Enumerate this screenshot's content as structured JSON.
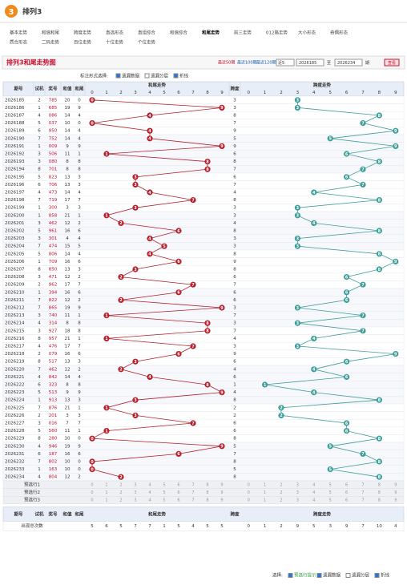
{
  "header": {
    "logo": "3",
    "title": "排列3"
  },
  "nav": [
    "基本走势",
    "和值和尾",
    "跨度走势",
    "直选形态",
    "直组综合",
    "和值综合",
    "和尾走势",
    "前三走势",
    "012路走势",
    "大小形态",
    "奇偶形态",
    "质合形态",
    "二码走势",
    "百位走势",
    "十位走势",
    "个位走势"
  ],
  "page_title": "排列3和尾走势图",
  "period_links": [
    "最近50期",
    "最近100期",
    "最近120期"
  ],
  "query": {
    "select": "近5",
    "from": "2026185",
    "sep": "至",
    "to": "2026234",
    "unit": "期",
    "button": "查看"
  },
  "options": {
    "label": "标注形式选择:",
    "items": [
      "遗漏数据",
      "遗漏分层",
      "折线"
    ],
    "checked": [
      true,
      false,
      true
    ]
  },
  "table": {
    "headers": [
      "期号",
      "试机",
      "奖号",
      "和值",
      "和尾",
      "和尾走势",
      "跨度",
      "跨度走势"
    ],
    "digits": [
      0,
      1,
      2,
      3,
      4,
      5,
      6,
      7,
      8,
      9
    ],
    "periods": [
      "2026185",
      "2026186",
      "2026187",
      "2026188",
      "2026189",
      "2026190",
      "2026191",
      "2026192",
      "2026193",
      "2026194",
      "2026195",
      "2026196",
      "2026197",
      "2026198",
      "2026199",
      "2026200",
      "2026201",
      "2026202",
      "2026203",
      "2026204",
      "2026205",
      "2026206",
      "2026207",
      "2026208",
      "2026209",
      "2026210",
      "2026211",
      "2026212",
      "2026213",
      "2026214",
      "2026215",
      "2026216",
      "2026217",
      "2026218",
      "2026219",
      "2026220",
      "2026221",
      "2026222",
      "2026223",
      "2026224",
      "2026225",
      "2026226",
      "2026227",
      "2026228",
      "2026229",
      "2026230",
      "2026231",
      "2026232",
      "2026233",
      "2026234"
    ],
    "test": [
      2,
      1,
      4,
      5,
      6,
      7,
      1,
      3,
      3,
      8,
      5,
      6,
      4,
      7,
      1,
      1,
      3,
      5,
      3,
      7,
      5,
      1,
      8,
      3,
      2,
      1,
      7,
      7,
      3,
      4,
      3,
      8,
      4,
      2,
      8,
      7,
      4,
      6,
      5,
      1,
      7,
      2,
      3,
      5,
      8,
      4,
      6,
      7,
      1,
      4
    ],
    "prize": [
      "785",
      "685",
      "086",
      "037",
      "950",
      "752",
      "009",
      "506",
      "080",
      "701",
      "823",
      "706",
      "473",
      "719",
      "300",
      "858",
      "462",
      "961",
      "301",
      "474",
      "806",
      "709",
      "850",
      "471",
      "962",
      "394",
      "822",
      "865",
      "740",
      "314",
      "927",
      "957",
      "476",
      "079",
      "517",
      "462",
      "842",
      "323",
      "513",
      "913",
      "876",
      "201",
      "016",
      "560",
      "280",
      "946",
      "187",
      "802",
      "163",
      "804"
    ],
    "sum": [
      20,
      19,
      14,
      10,
      14,
      14,
      9,
      11,
      8,
      8,
      13,
      13,
      14,
      17,
      3,
      21,
      12,
      16,
      4,
      15,
      14,
      16,
      13,
      12,
      17,
      16,
      12,
      19,
      11,
      8,
      18,
      21,
      17,
      16,
      13,
      12,
      14,
      8,
      9,
      13,
      21,
      3,
      7,
      11,
      10,
      19,
      16,
      10,
      10,
      12
    ],
    "tail": [
      0,
      9,
      4,
      0,
      4,
      4,
      9,
      1,
      8,
      8,
      3,
      3,
      4,
      7,
      3,
      1,
      2,
      6,
      4,
      5,
      4,
      6,
      3,
      2,
      7,
      6,
      2,
      9,
      1,
      8,
      8,
      1,
      7,
      6,
      3,
      2,
      4,
      8,
      9,
      3,
      1,
      3,
      7,
      1,
      0,
      9,
      6,
      0,
      0,
      2
    ],
    "span": [
      3,
      3,
      8,
      7,
      9,
      5,
      9,
      6,
      8,
      7,
      6,
      7,
      4,
      8,
      3,
      3,
      4,
      8,
      3,
      3,
      8,
      9,
      8,
      6,
      7,
      6,
      6,
      3,
      7,
      3,
      7,
      4,
      3,
      9,
      6,
      4,
      6,
      1,
      4,
      8,
      2,
      2,
      6,
      6,
      8,
      5,
      7,
      8,
      5,
      8
    ],
    "preselect": [
      "预选行1",
      "预选行2",
      "预选行3"
    ],
    "stats_label": "出现总次数",
    "tail_counts": [
      5,
      6,
      5,
      7,
      7,
      1,
      5,
      4,
      5,
      5
    ],
    "span_counts": [
      0,
      1,
      2,
      9,
      5,
      3,
      9,
      7,
      10,
      4
    ]
  },
  "footer": {
    "label": "选择:",
    "items": [
      "预选行提示",
      "遗漏数据",
      "遗漏分层",
      "折线"
    ],
    "checked": [
      true,
      true,
      false,
      true
    ]
  }
}
